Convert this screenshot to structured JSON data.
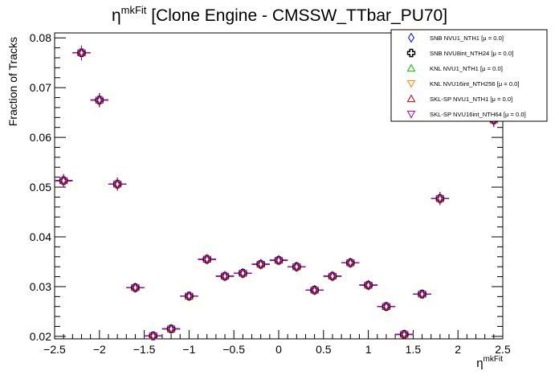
{
  "chart_data": {
    "type": "scatter",
    "title": {
      "main_symbol": "η",
      "superscript": "mkFit",
      "rest": " [Clone Engine - CMSSW_TTbar_PU70]"
    },
    "xlabel": {
      "main_symbol": "η",
      "superscript": "mkFit"
    },
    "ylabel": "Fraction of Tracks",
    "xlim": [
      -2.5,
      2.5
    ],
    "ylim": [
      0.0195,
      0.081
    ],
    "x_ticks": [
      -2.5,
      -2,
      -1.5,
      -1,
      -0.5,
      0,
      0.5,
      1,
      1.5,
      2,
      2.5
    ],
    "x_tick_labels": [
      "−2.5",
      "−2",
      "−1.5",
      "−1",
      "−0.5",
      "0",
      "0.5",
      "1",
      "1.5",
      "2",
      "2.5"
    ],
    "y_ticks": [
      0.02,
      0.03,
      0.04,
      0.05,
      0.06,
      0.07,
      0.08
    ],
    "y_tick_labels": [
      "0.02",
      "0.03",
      "0.04",
      "0.05",
      "0.06",
      "0.07",
      "0.08"
    ],
    "grid": false,
    "legend_position": "top-right",
    "bin_half_width": 0.1,
    "x": [
      -2.4,
      -2.2,
      -2.0,
      -1.8,
      -1.6,
      -1.4,
      -1.2,
      -1.0,
      -0.8,
      -0.6,
      -0.4,
      -0.2,
      0.0,
      0.2,
      0.4,
      0.6,
      0.8,
      1.0,
      1.2,
      1.4,
      1.6,
      1.8,
      2.4
    ],
    "y": [
      0.0513,
      0.077,
      0.0675,
      0.0506,
      0.0298,
      0.0201,
      0.0215,
      0.0281,
      0.0355,
      0.0321,
      0.0327,
      0.0345,
      0.0353,
      0.034,
      0.0293,
      0.0321,
      0.0348,
      0.0303,
      0.026,
      0.0204,
      0.0285,
      0.0477,
      0.0635
    ],
    "y_error": [
      0.0013,
      0.0015,
      0.0014,
      0.0013,
      0.001,
      0.0008,
      0.0008,
      0.0009,
      0.001,
      0.001,
      0.001,
      0.001,
      0.001,
      0.001,
      0.001,
      0.001,
      0.001,
      0.001,
      0.0009,
      0.0008,
      0.0009,
      0.0013,
      0.0014
    ],
    "series": [
      {
        "name": "SNB NVU1_NTH1 [μ =  0.0]",
        "marker": "diamond-open",
        "color": "#0000ff"
      },
      {
        "name": "SNB NVU8int_NTH24 [μ =  0.0]",
        "marker": "cross-open",
        "color": "#000000"
      },
      {
        "name": "KNL NVU1_NTH1 [μ =  0.0]",
        "marker": "triangle-up-open",
        "color": "#00c000"
      },
      {
        "name": "KNL NVU16int_NTH256 [μ =  0.0]",
        "marker": "triangle-down-open",
        "color": "#ff8000"
      },
      {
        "name": "SKL-SP NVU1_NTH1 [μ =  0.0]",
        "marker": "triangle-up-open",
        "color": "#cc0000"
      },
      {
        "name": "SKL-SP NVU16int_NTH64 [μ =  0.0]",
        "marker": "triangle-down-open",
        "color": "#9400d3"
      }
    ]
  }
}
